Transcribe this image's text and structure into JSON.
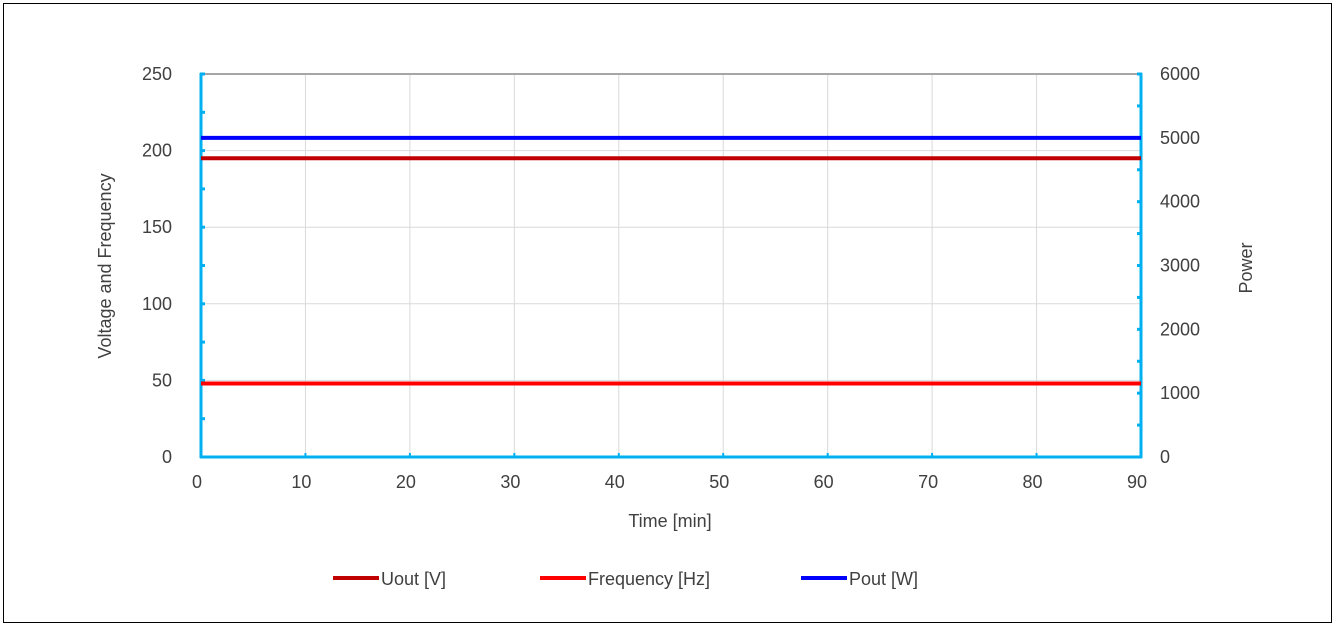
{
  "chart_data": {
    "type": "line",
    "title": "",
    "xlabel": "Time [min]",
    "ylabel_left": "Voltage and Frequency",
    "ylabel_right": "Power",
    "xlim": [
      0,
      90
    ],
    "ylim_left": [
      0,
      250
    ],
    "ylim_right": [
      0,
      6000
    ],
    "x_ticks": [
      "0",
      "10",
      "20",
      "30",
      "40",
      "50",
      "60",
      "70",
      "80",
      "90"
    ],
    "y_left_ticks": [
      "0",
      "50",
      "100",
      "150",
      "200",
      "250"
    ],
    "y_right_ticks": [
      "0",
      "1000",
      "2000",
      "3000",
      "4000",
      "5000",
      "6000"
    ],
    "grid": true,
    "legend_position": "bottom",
    "series": [
      {
        "name": "Uout [V]",
        "axis": "left",
        "color": "#C00000",
        "x": [
          0,
          90
        ],
        "y": [
          195,
          195
        ]
      },
      {
        "name": "Frequency [Hz]",
        "axis": "left",
        "color": "#FF0000",
        "x": [
          0,
          90
        ],
        "y": [
          48,
          48
        ]
      },
      {
        "name": "Pout [W]",
        "axis": "right",
        "color": "#0000FF",
        "x": [
          0,
          90
        ],
        "y": [
          5000,
          5000
        ]
      }
    ]
  }
}
